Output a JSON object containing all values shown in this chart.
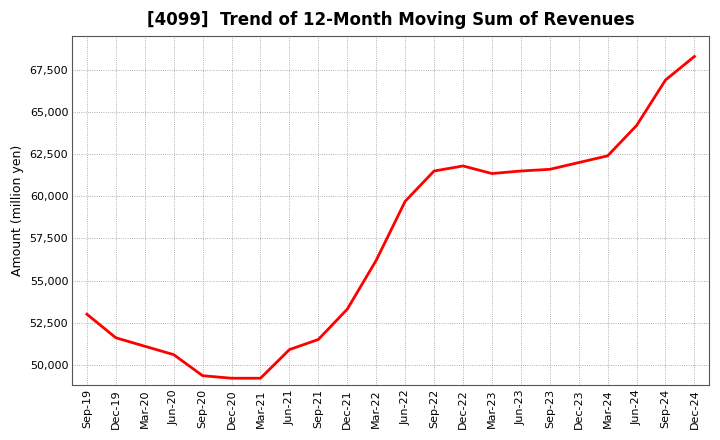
{
  "title": "[4099]  Trend of 12-Month Moving Sum of Revenues",
  "ylabel": "Amount (million yen)",
  "line_color": "#FF0000",
  "line_width": 2.0,
  "background_color": "#FFFFFF",
  "plot_bg_color": "#FFFFFF",
  "grid_color": "#999999",
  "tick_labels": [
    "Sep-19",
    "Dec-19",
    "Mar-20",
    "Jun-20",
    "Sep-20",
    "Dec-20",
    "Mar-21",
    "Jun-21",
    "Sep-21",
    "Dec-21",
    "Mar-22",
    "Jun-22",
    "Sep-22",
    "Dec-22",
    "Mar-23",
    "Jun-23",
    "Sep-23",
    "Dec-23",
    "Mar-24",
    "Jun-24",
    "Sep-24",
    "Dec-24"
  ],
  "values": [
    53000,
    51600,
    51100,
    50600,
    49350,
    49200,
    49200,
    50900,
    51500,
    53300,
    56200,
    59700,
    61500,
    61800,
    61350,
    61500,
    61600,
    62000,
    62400,
    64200,
    66900,
    68300
  ],
  "ylim_min": 48800,
  "ylim_max": 69500,
  "yticks": [
    50000,
    52500,
    55000,
    57500,
    60000,
    62500,
    65000,
    67500
  ],
  "title_fontsize": 12,
  "title_fontweight": "bold",
  "axis_label_fontsize": 9,
  "tick_fontsize": 8
}
